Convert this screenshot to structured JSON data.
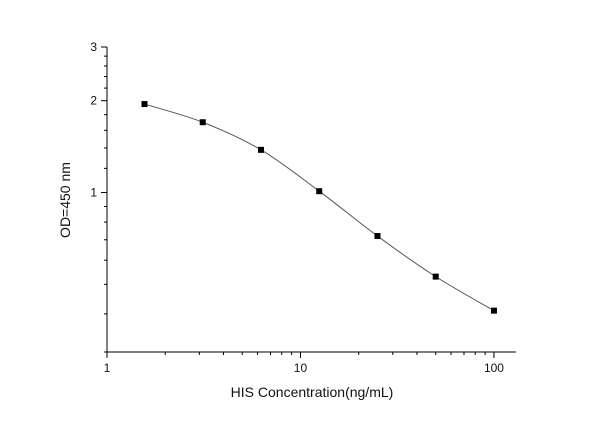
{
  "chart_data": {
    "type": "scatter",
    "title": "",
    "xlabel": "HIS Concentration(ng/mL)",
    "ylabel": "OD=450 nm",
    "xscale": "log",
    "yscale": "log",
    "xlim": [
      1,
      130
    ],
    "ylim": [
      0.3,
      3
    ],
    "x_ticks": [
      {
        "value": 1,
        "label": "1"
      },
      {
        "value": 10,
        "label": "10"
      },
      {
        "value": 100,
        "label": "100"
      }
    ],
    "y_ticks": [
      {
        "value": 1,
        "label": "1"
      },
      {
        "value": 2,
        "label": "2"
      },
      {
        "value": 3,
        "label": "3"
      }
    ],
    "grid": false,
    "fit_curve": true,
    "colors": {
      "line": "#555555",
      "marker": "#000000",
      "axis": "#000000"
    },
    "series": [
      {
        "x": [
          1.5625,
          3.125,
          6.25,
          12.5,
          25,
          50,
          100
        ],
        "y": [
          1.95,
          1.7,
          1.38,
          1.01,
          0.72,
          0.53,
          0.41
        ]
      }
    ]
  }
}
